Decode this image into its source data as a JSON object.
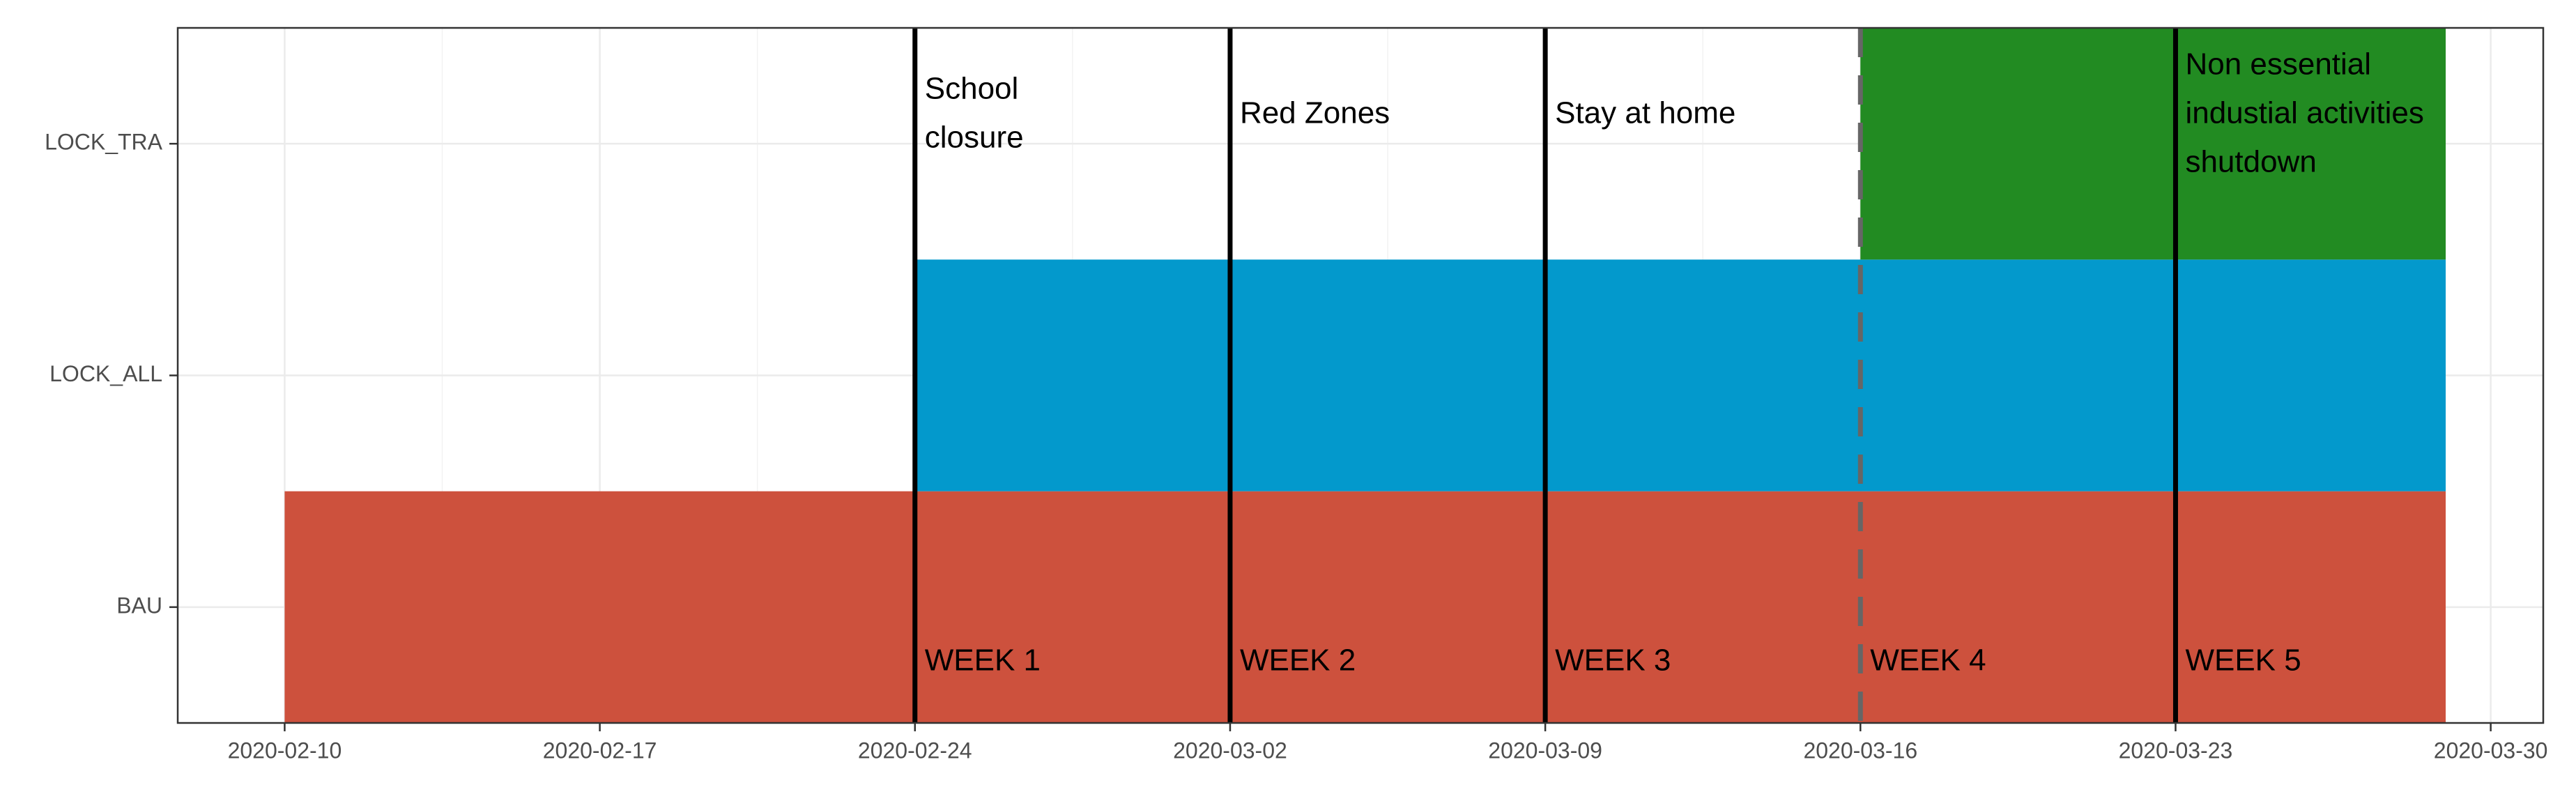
{
  "chart_data": {
    "type": "timeline",
    "tasks": [
      {
        "name": "BAU",
        "start": "2020-02-10",
        "end": "2020-03-29",
        "color": "#cd513d"
      },
      {
        "name": "LOCK_ALL",
        "start": "2020-02-24",
        "end": "2020-03-29",
        "color": "#0399cc"
      },
      {
        "name": "LOCK_TRA",
        "start": "2020-03-16",
        "end": "2020-03-29",
        "color": "#228b22"
      }
    ],
    "events": [
      {
        "date": "2020-02-24",
        "label": [
          "School",
          "closure"
        ],
        "week": "WEEK 1",
        "dashed": false
      },
      {
        "date": "2020-03-02",
        "label": [
          "Red Zones"
        ],
        "week": "WEEK 2",
        "dashed": false
      },
      {
        "date": "2020-03-09",
        "label": [
          "Stay at home"
        ],
        "week": "WEEK 3",
        "dashed": false
      },
      {
        "date": "2020-03-16",
        "label": [],
        "week": "WEEK 4",
        "dashed": true
      },
      {
        "date": "2020-03-23",
        "label": [
          "Non essential",
          "industial activities",
          "shutdown"
        ],
        "week": "WEEK 5",
        "dashed": false
      }
    ],
    "xlim": [
      "2020-02-07T15:00",
      "2020-03-31T04:00"
    ],
    "xticks": [
      "2020-02-10",
      "2020-02-17",
      "2020-02-24",
      "2020-03-02",
      "2020-03-09",
      "2020-03-16",
      "2020-03-23",
      "2020-03-30"
    ],
    "grid": true
  }
}
